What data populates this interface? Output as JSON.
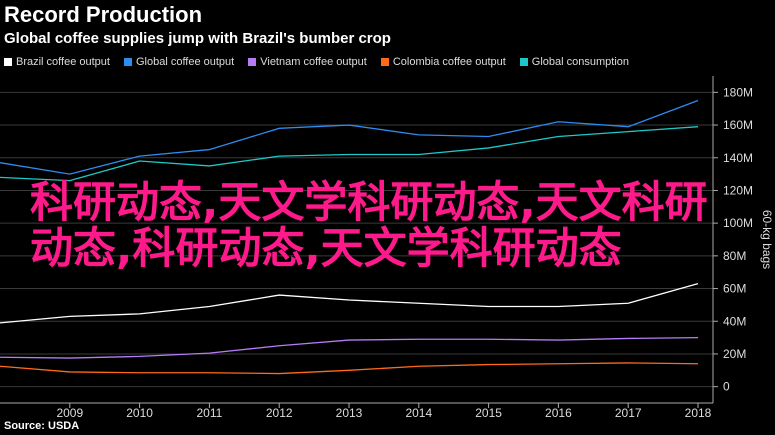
{
  "header": {
    "title": "Record Production",
    "subtitle": "Global coffee supplies jump with Brazil's bumber crop"
  },
  "source": "Source: USDA",
  "overlay_text": "科研动态,天文学科研动态,天文科研动态,科研动态,天文学科研动态",
  "chart_data": {
    "type": "line",
    "x": [
      "2008",
      "2009",
      "2010",
      "2011",
      "2012",
      "2013",
      "2014",
      "2015",
      "2016",
      "2017",
      "2018"
    ],
    "xticks": [
      "2009",
      "2010",
      "2011",
      "2012",
      "2013",
      "2014",
      "2015",
      "2016",
      "2017",
      "2018"
    ],
    "ylabel": "60-kg bags",
    "ylim": [
      -10,
      190
    ],
    "yticks": [
      0,
      20,
      40,
      60,
      80,
      100,
      120,
      140,
      160,
      180
    ],
    "ytick_labels": [
      "0",
      "20M",
      "40M",
      "60M",
      "80M",
      "100M",
      "120M",
      "140M",
      "160M",
      "180M"
    ],
    "grid": true,
    "series": [
      {
        "name": "Brazil coffee output",
        "color": "#ffffff",
        "values": [
          39,
          43,
          44.5,
          49,
          56,
          53,
          51,
          49,
          49,
          51,
          63
        ]
      },
      {
        "name": "Global coffee output",
        "color": "#2d8cf0",
        "values": [
          137,
          130,
          141,
          145,
          158,
          160,
          154,
          153,
          162,
          159,
          175
        ]
      },
      {
        "name": "Vietnam coffee output",
        "color": "#b57cf5",
        "values": [
          18,
          17.5,
          18.5,
          20.5,
          25,
          28.5,
          29,
          29,
          28.5,
          29.5,
          30
        ]
      },
      {
        "name": "Colombia coffee output",
        "color": "#ff6a1a",
        "values": [
          12.5,
          9,
          8.5,
          8.5,
          8,
          10,
          12.5,
          13.5,
          14,
          14.5,
          14
        ]
      },
      {
        "name": "Global consumption",
        "color": "#1fc8c8",
        "values": [
          128,
          126,
          138,
          135,
          141,
          142,
          142,
          146,
          153,
          156,
          159
        ]
      }
    ]
  }
}
